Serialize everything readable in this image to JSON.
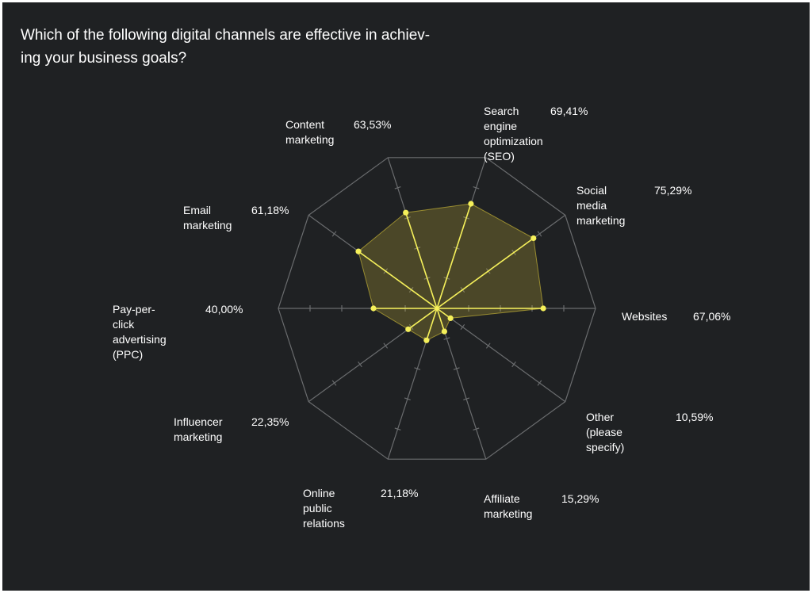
{
  "chart_data": {
    "type": "radar",
    "title": "Which of the following digital channels are effective in achiev-ing your business goals?",
    "title_lines": [
      "Which of the following digital channels are effective in achiev-",
      "ing your business goals?"
    ],
    "axis_max": 100,
    "grid": true,
    "colors": {
      "background": "#1f2123",
      "grid": "#6a6c6e",
      "series": "#f5f05a",
      "fill": "#e8d23a"
    },
    "categories": [
      {
        "name_lines": [
          "Search engine",
          "optimization",
          "(SEO)"
        ],
        "value": 69.41,
        "label": "69,41%"
      },
      {
        "name_lines": [
          "Social media",
          "marketing"
        ],
        "value": 75.29,
        "label": "75,29%"
      },
      {
        "name_lines": [
          "Websites"
        ],
        "value": 67.06,
        "label": "67,06%"
      },
      {
        "name_lines": [
          "Other (please",
          "specify)"
        ],
        "value": 10.59,
        "label": "10,59%"
      },
      {
        "name_lines": [
          "Affiliate",
          "marketing"
        ],
        "value": 15.29,
        "label": "15,29%"
      },
      {
        "name_lines": [
          "Online",
          "public",
          "relations"
        ],
        "value": 21.18,
        "label": "21,18%"
      },
      {
        "name_lines": [
          "Influencer",
          "marketing"
        ],
        "value": 22.35,
        "label": "22,35%"
      },
      {
        "name_lines": [
          "Pay-per-click",
          "advertising",
          "(PPC)"
        ],
        "value": 40.0,
        "label": "40,00%"
      },
      {
        "name_lines": [
          "Email",
          "marketing"
        ],
        "value": 61.18,
        "label": "61,18%"
      },
      {
        "name_lines": [
          "Content",
          "marketing"
        ],
        "value": 63.53,
        "label": "63,53%"
      }
    ]
  }
}
